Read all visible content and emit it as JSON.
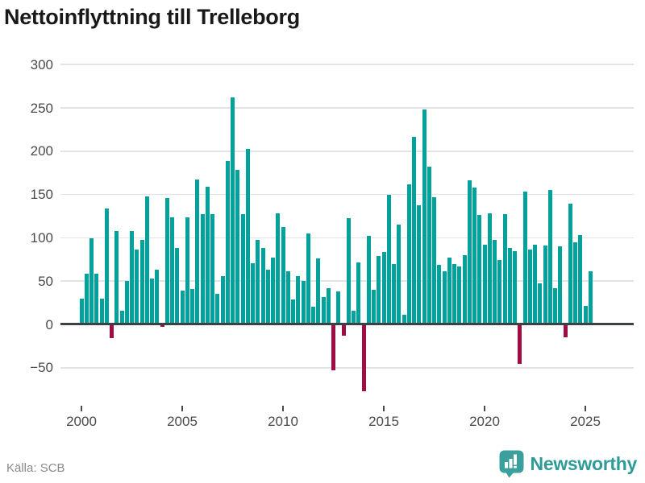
{
  "header": {
    "title": "Nettoinflyttning till Trelleborg"
  },
  "footer": {
    "source": "Källa: SCB",
    "brand": "Newsworthy"
  },
  "chart_data": {
    "type": "bar",
    "title": "Nettoinflyttning till Trelleborg",
    "frequency": "quarterly",
    "start_period": "2000-Q1",
    "end_period": "2025-Q2",
    "values": [
      30,
      59,
      99,
      59,
      30,
      134,
      -16,
      108,
      16,
      50,
      108,
      86,
      98,
      148,
      53,
      63,
      -3,
      146,
      124,
      88,
      39,
      124,
      41,
      167,
      127,
      159,
      127,
      35,
      56,
      189,
      262,
      178,
      127,
      203,
      71,
      98,
      88,
      63,
      77,
      128,
      112,
      61,
      29,
      56,
      50,
      105,
      20,
      76,
      32,
      42,
      -53,
      38,
      -13,
      123,
      16,
      72,
      -77,
      102,
      40,
      79,
      84,
      150,
      70,
      115,
      11,
      162,
      217,
      138,
      248,
      182,
      147,
      69,
      61,
      77,
      70,
      67,
      80,
      166,
      158,
      126,
      92,
      128,
      98,
      74,
      127,
      88,
      85,
      -46,
      153,
      86,
      92,
      47,
      91,
      155,
      42,
      90,
      -15,
      139,
      95,
      103,
      21,
      61
    ],
    "y_ticks": [
      300,
      250,
      200,
      150,
      100,
      50,
      0,
      -50
    ],
    "y_tick_labels": [
      "300",
      "250",
      "200",
      "150",
      "100",
      "50",
      "0",
      "−50"
    ],
    "x_tick_labels": [
      "2000",
      "2005",
      "2010",
      "2015",
      "2020",
      "2025"
    ],
    "ylim": [
      -90,
      300
    ],
    "grid": true,
    "legend": false,
    "positive_color": "#00a29b",
    "negative_color": "#a00d45",
    "source": "Källa: SCB",
    "brand": "Newsworthy"
  }
}
